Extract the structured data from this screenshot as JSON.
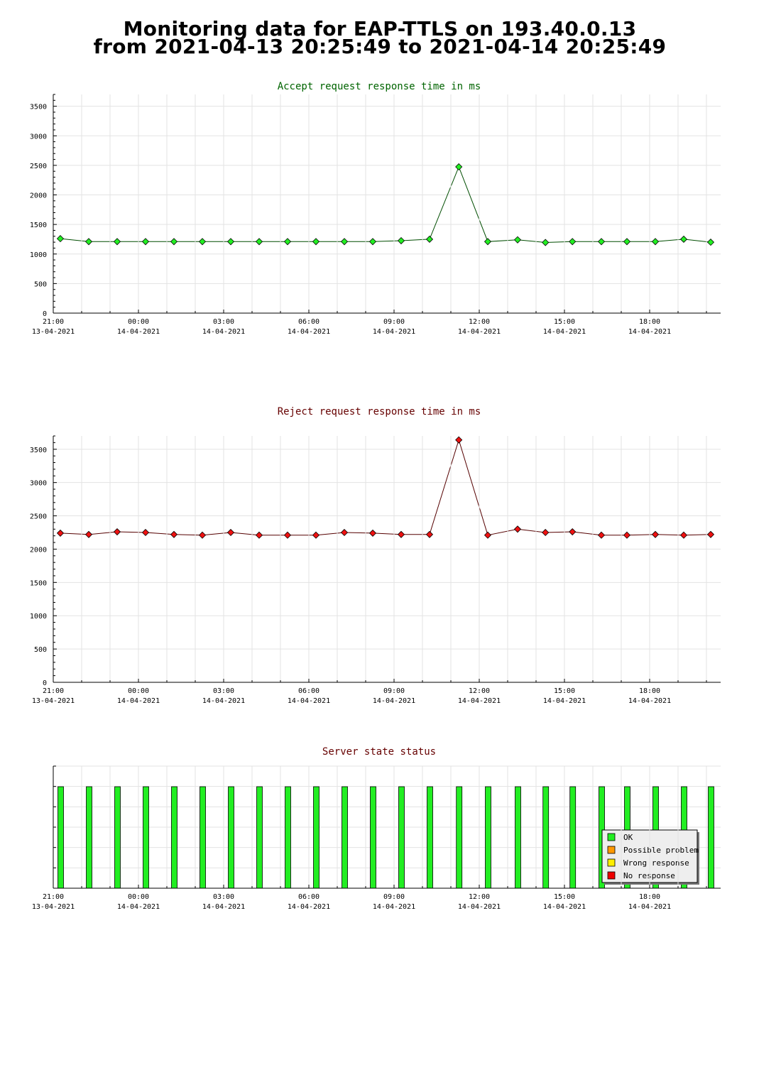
{
  "page": {
    "title_line1": "Monitoring data for EAP-TTLS on 193.40.0.13",
    "title_line2": "from 2021-04-13 20:25:49 to 2021-04-14 20:25:49"
  },
  "x_axis": {
    "ticks": [
      {
        "time": "21:00",
        "date": "13-04-2021",
        "hour": 21
      },
      {
        "time": "00:00",
        "date": "14-04-2021",
        "hour": 24
      },
      {
        "time": "03:00",
        "date": "14-04-2021",
        "hour": 27
      },
      {
        "time": "06:00",
        "date": "14-04-2021",
        "hour": 30
      },
      {
        "time": "09:00",
        "date": "14-04-2021",
        "hour": 33
      },
      {
        "time": "12:00",
        "date": "14-04-2021",
        "hour": 36
      },
      {
        "time": "15:00",
        "date": "14-04-2021",
        "hour": 39
      },
      {
        "time": "18:00",
        "date": "14-04-2021",
        "hour": 42
      }
    ]
  },
  "chart_data": [
    {
      "type": "line",
      "title": "Accept request response time in ms",
      "title_color": "#006400",
      "line_color": "#004d00",
      "marker_color": "#22ee22",
      "xlabel": "",
      "ylabel": "",
      "ylim": [
        0,
        3700
      ],
      "yticks": [
        0,
        500,
        1000,
        1500,
        2000,
        2500,
        3000,
        3500
      ],
      "grid": true,
      "x_hours": [
        21.25,
        22.25,
        23.25,
        24.25,
        25.25,
        26.25,
        27.25,
        28.25,
        29.25,
        30.25,
        31.25,
        32.25,
        33.25,
        34.25,
        35.28,
        36.3,
        37.35,
        38.33,
        39.28,
        40.3,
        41.2,
        42.2,
        43.2,
        44.15
      ],
      "values": [
        1260,
        1210,
        1210,
        1210,
        1210,
        1210,
        1210,
        1210,
        1210,
        1210,
        1210,
        1210,
        1225,
        1250,
        2475,
        1210,
        1240,
        1195,
        1210,
        1210,
        1210,
        1210,
        1250,
        1200
      ]
    },
    {
      "type": "line",
      "title": "Reject request response time in ms",
      "title_color": "#660000",
      "line_color": "#550000",
      "marker_color": "#ee1111",
      "xlabel": "",
      "ylabel": "",
      "ylim": [
        0,
        3700
      ],
      "yticks": [
        0,
        500,
        1000,
        1500,
        2000,
        2500,
        3000,
        3500
      ],
      "grid": true,
      "x_hours": [
        21.25,
        22.25,
        23.25,
        24.25,
        25.25,
        26.25,
        27.25,
        28.25,
        29.25,
        30.25,
        31.25,
        32.25,
        33.25,
        34.25,
        35.28,
        36.3,
        37.35,
        38.33,
        39.28,
        40.3,
        41.2,
        42.2,
        43.2,
        44.15
      ],
      "values": [
        2240,
        2220,
        2260,
        2250,
        2220,
        2210,
        2250,
        2210,
        2210,
        2210,
        2250,
        2240,
        2220,
        2220,
        3640,
        2210,
        2300,
        2250,
        2260,
        2210,
        2210,
        2220,
        2210,
        2220
      ]
    },
    {
      "type": "bar",
      "title": "Server state status",
      "title_color": "#660000",
      "bar_color": "#22ee22",
      "xlabel": "",
      "ylabel": "",
      "x_hours": [
        21.25,
        22.25,
        23.25,
        24.25,
        25.25,
        26.25,
        27.25,
        28.25,
        29.25,
        30.25,
        31.25,
        32.25,
        33.25,
        34.25,
        35.28,
        36.3,
        37.35,
        38.33,
        39.28,
        40.3,
        41.2,
        42.2,
        43.2,
        44.15
      ],
      "states": [
        "OK",
        "OK",
        "OK",
        "OK",
        "OK",
        "OK",
        "OK",
        "OK",
        "OK",
        "OK",
        "OK",
        "OK",
        "OK",
        "OK",
        "OK",
        "OK",
        "OK",
        "OK",
        "OK",
        "OK",
        "OK",
        "OK",
        "OK",
        "OK"
      ],
      "legend_position": "bottom-right",
      "legend": [
        {
          "label": "OK",
          "color": "#22ee22"
        },
        {
          "label": "Possible problem",
          "color": "#ff9900"
        },
        {
          "label": "Wrong response",
          "color": "#ffee00"
        },
        {
          "label": "No response",
          "color": "#ee0000"
        }
      ]
    }
  ]
}
